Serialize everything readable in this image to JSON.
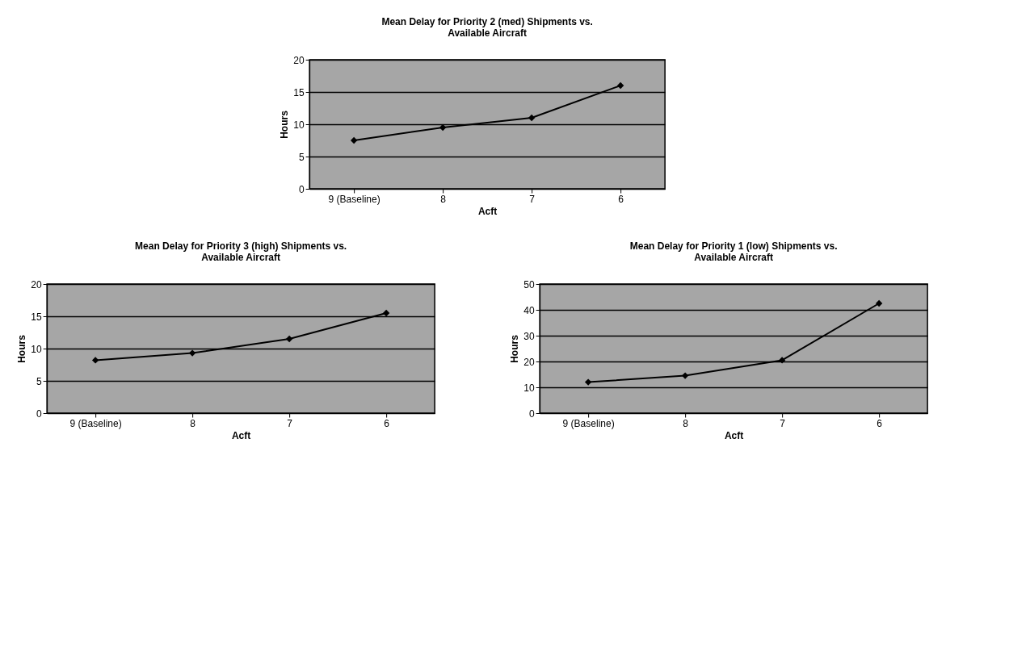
{
  "chart_data": [
    {
      "type": "line",
      "title": "Mean Delay for Priority 2 (med) Shipments vs. Available Aircraft",
      "xlabel": "Acft",
      "ylabel": "Hours",
      "categories": [
        "9 (Baseline)",
        "8",
        "7",
        "6"
      ],
      "values": [
        7.5,
        9.5,
        11,
        16
      ],
      "color": "#000000",
      "marker": "diamond",
      "line_style": "solid",
      "ylim": [
        0,
        20
      ],
      "yticks": [
        0,
        5,
        10,
        15,
        20
      ],
      "grid": "y"
    },
    {
      "type": "line",
      "title": "Mean Delay for Priority 3 (high) Shipments vs. Available Aircraft",
      "xlabel": "Acft",
      "ylabel": "Hours",
      "categories": [
        "9 (Baseline)",
        "8",
        "7",
        "6"
      ],
      "values": [
        8.2,
        9.3,
        11.5,
        15.5
      ],
      "color": "#000000",
      "marker": "diamond",
      "line_style": "solid",
      "ylim": [
        0,
        20
      ],
      "yticks": [
        0,
        5,
        10,
        15,
        20
      ],
      "grid": "y"
    },
    {
      "type": "line",
      "title": "Mean Delay for Priority 1 (low) Shipments vs. Available Aircraft",
      "xlabel": "Acft",
      "ylabel": "Hours",
      "categories": [
        "9 (Baseline)",
        "8",
        "7",
        "6"
      ],
      "values": [
        12,
        14.5,
        20.5,
        42.5
      ],
      "color": "#000000",
      "marker": "diamond",
      "line_style": "solid",
      "ylim": [
        0,
        50
      ],
      "yticks": [
        0,
        10,
        20,
        30,
        40,
        50
      ],
      "grid": "y"
    }
  ]
}
